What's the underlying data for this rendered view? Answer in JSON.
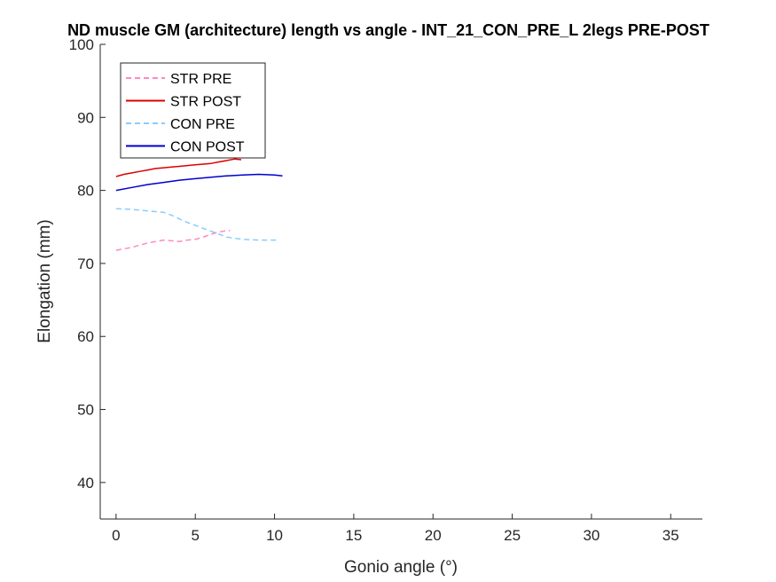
{
  "chart_data": {
    "type": "line",
    "title": "ND muscle GM (architecture) length vs angle - INT_21_CON_PRE_L 2legs PRE-POST",
    "xlabel": "Gonio angle (°)",
    "ylabel": "Elongation (mm)",
    "xlim": [
      -1,
      37
    ],
    "ylim": [
      35,
      100
    ],
    "xticks": [
      0,
      5,
      10,
      15,
      20,
      25,
      30,
      35
    ],
    "yticks": [
      40,
      50,
      60,
      70,
      80,
      90,
      100
    ],
    "grid": false,
    "legend_placement": "top-left",
    "series": [
      {
        "name": "STR PRE",
        "color": "#ff88c0",
        "dash": "dashed",
        "x": [
          0,
          0.5,
          1,
          1.5,
          2,
          2.5,
          3,
          3.5,
          4,
          4.5,
          5,
          5.5,
          6,
          6.5,
          7,
          7.2
        ],
        "y": [
          71.8,
          72.0,
          72.2,
          72.5,
          72.8,
          73.0,
          73.2,
          73.1,
          73.0,
          73.2,
          73.3,
          73.6,
          74.0,
          74.3,
          74.5,
          74.5
        ]
      },
      {
        "name": "STR POST",
        "color": "#dd0000",
        "dash": "solid",
        "x": [
          0,
          0.5,
          1,
          1.5,
          2,
          2.5,
          3,
          3.5,
          4,
          4.5,
          5,
          5.5,
          6,
          6.5,
          7,
          7.5,
          7.9
        ],
        "y": [
          81.9,
          82.2,
          82.4,
          82.6,
          82.8,
          83.0,
          83.1,
          83.2,
          83.3,
          83.4,
          83.5,
          83.6,
          83.7,
          83.9,
          84.1,
          84.3,
          84.2
        ]
      },
      {
        "name": "CON PRE",
        "color": "#88ccff",
        "dash": "dashed",
        "x": [
          0,
          1,
          2,
          3,
          3.5,
          4,
          4.5,
          5,
          5.5,
          6,
          6.5,
          7,
          8,
          9,
          10,
          10.3
        ],
        "y": [
          77.5,
          77.4,
          77.2,
          77.0,
          76.6,
          76.1,
          75.6,
          75.2,
          74.8,
          74.4,
          74.0,
          73.6,
          73.3,
          73.2,
          73.2,
          73.2
        ]
      },
      {
        "name": "CON POST",
        "color": "#0000cc",
        "dash": "solid",
        "x": [
          0,
          1,
          2,
          3,
          4,
          5,
          6,
          7,
          8,
          9,
          10,
          10.5
        ],
        "y": [
          80.0,
          80.4,
          80.8,
          81.1,
          81.4,
          81.6,
          81.8,
          82.0,
          82.1,
          82.2,
          82.1,
          82.0
        ]
      }
    ]
  }
}
